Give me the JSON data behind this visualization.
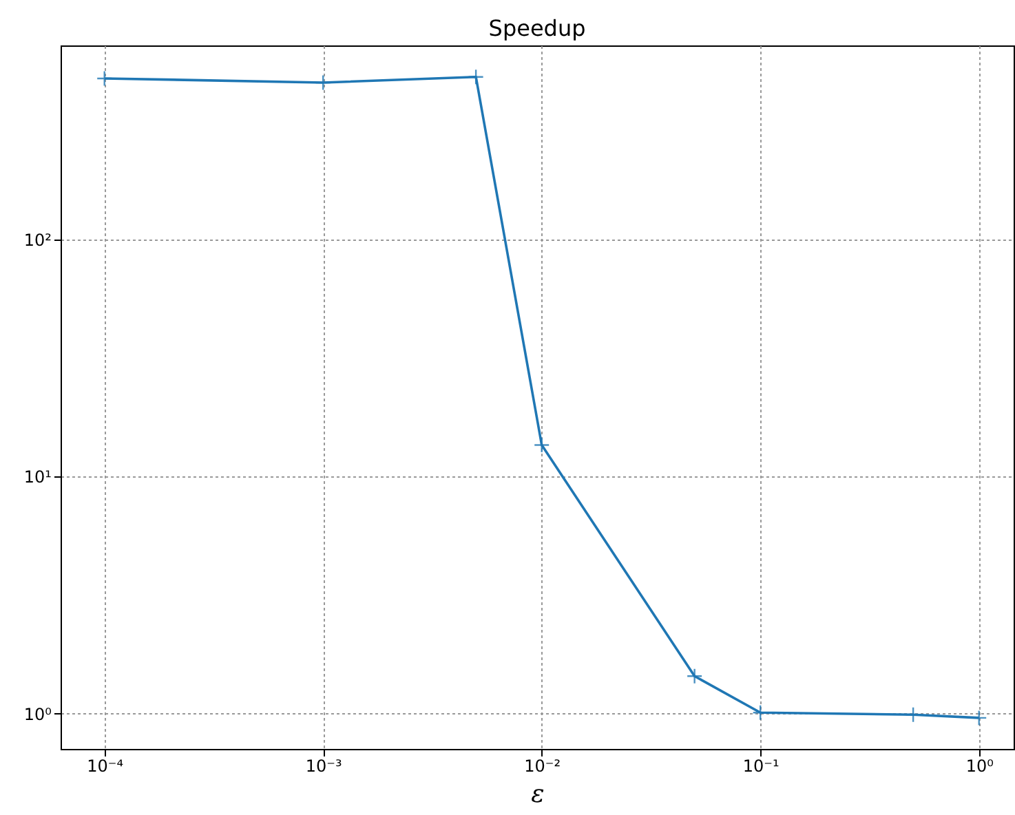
{
  "chart_data": {
    "type": "line",
    "title": "Speedup",
    "xlabel": "ε",
    "log": "xy",
    "x": [
      0.0001,
      0.001,
      0.005,
      0.01,
      0.05,
      0.1,
      0.5,
      1
    ],
    "series": [
      {
        "color": "#1f77b4",
        "values": [
          479,
          460,
          486,
          13.6,
          1.44,
          1.01,
          0.99,
          0.96
        ]
      }
    ],
    "xlim": [
      6.3e-05,
      1.44
    ],
    "ylim": [
      0.71,
      660
    ],
    "xticks": [
      {
        "value": 0.0001,
        "label": "10⁻⁴"
      },
      {
        "value": 0.001,
        "label": "10⁻³"
      },
      {
        "value": 0.01,
        "label": "10⁻²"
      },
      {
        "value": 0.1,
        "label": "10⁻¹"
      },
      {
        "value": 1,
        "label": "10⁰"
      }
    ],
    "yticks": [
      {
        "value": 1,
        "label": "10⁰"
      },
      {
        "value": 10,
        "label": "10¹"
      },
      {
        "value": 100,
        "label": "10²"
      }
    ],
    "grid": true,
    "marker": "cross",
    "line_style": "solid"
  }
}
